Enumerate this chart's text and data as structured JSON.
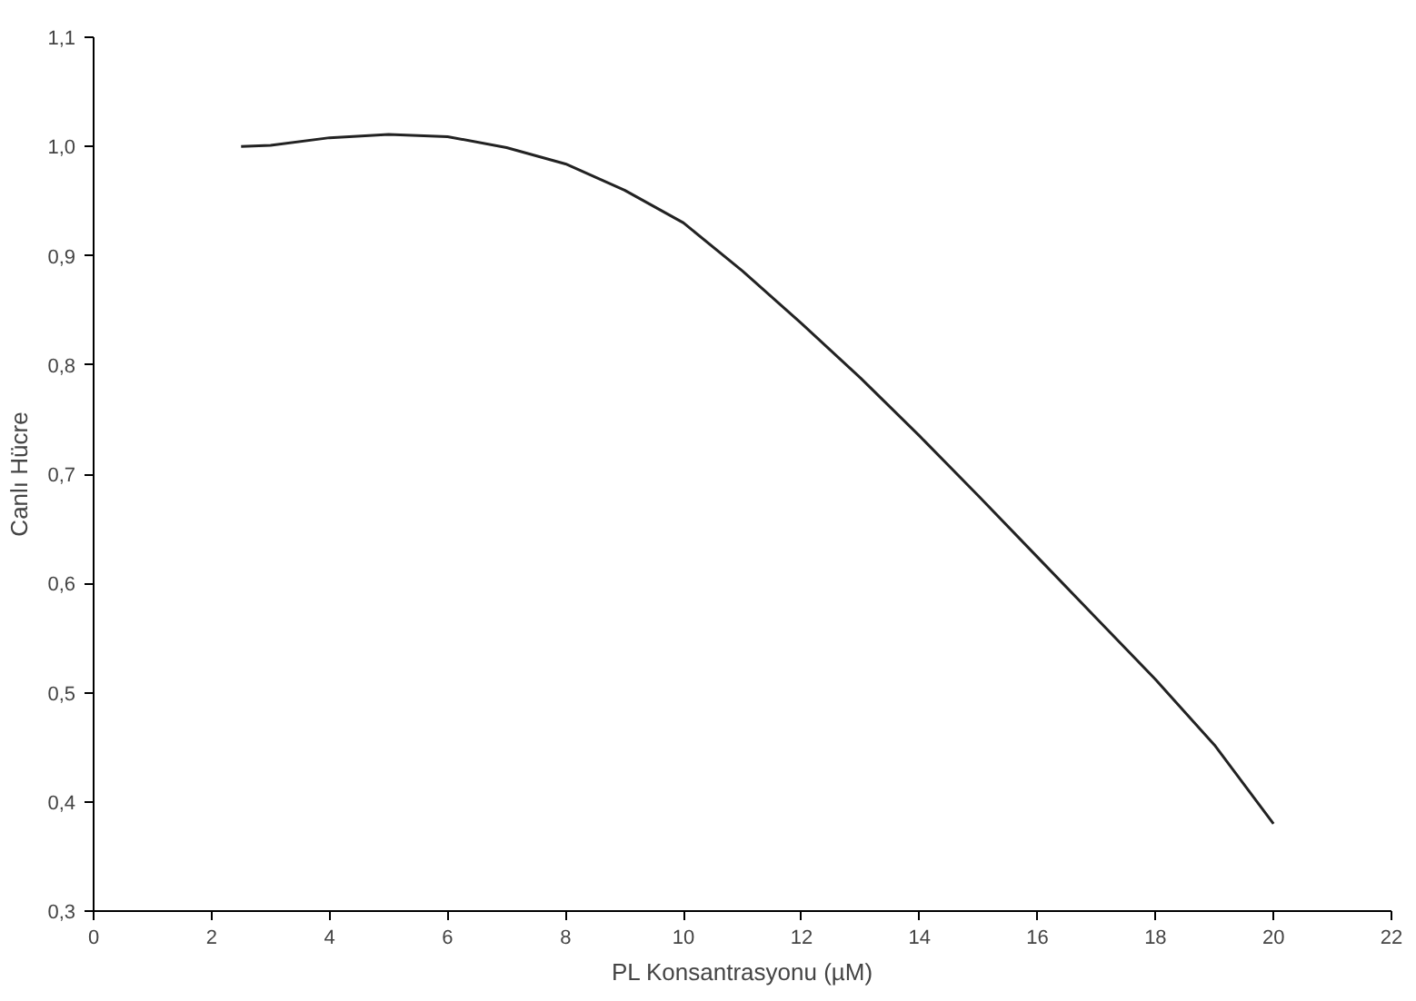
{
  "chart_data": {
    "type": "line",
    "xlabel": "PL Konsantrasyonu (µM)",
    "ylabel": "Canlı Hücre",
    "x": [
      2.5,
      3,
      4,
      5,
      6,
      7,
      8,
      9,
      10,
      11,
      12,
      13,
      14,
      15,
      16,
      17,
      18,
      19,
      20
    ],
    "series": [
      {
        "color": "#222222",
        "values": [
          1.0,
          1.001,
          1.008,
          1.011,
          1.009,
          0.999,
          0.984,
          0.96,
          0.93,
          0.886,
          0.838,
          0.788,
          0.735,
          0.68,
          0.624,
          0.568,
          0.512,
          0.452,
          0.38
        ]
      }
    ],
    "xlim": [
      0,
      22
    ],
    "ylim": [
      0.3,
      1.1
    ],
    "xticks": [
      0,
      2,
      4,
      6,
      8,
      10,
      12,
      14,
      16,
      18,
      20,
      22
    ],
    "yticks": [
      {
        "value": 0.3,
        "label": "0,3"
      },
      {
        "value": 0.4,
        "label": "0,4"
      },
      {
        "value": 0.5,
        "label": "0,5"
      },
      {
        "value": 0.6,
        "label": "0,6"
      },
      {
        "value": 0.7,
        "label": "0,7"
      },
      {
        "value": 0.8,
        "label": "0,8"
      },
      {
        "value": 0.9,
        "label": "0,9"
      },
      {
        "value": 1.0,
        "label": "1,0"
      },
      {
        "value": 1.1,
        "label": "1,1"
      }
    ],
    "grid": false,
    "marker": "none",
    "line_style": "solid"
  }
}
